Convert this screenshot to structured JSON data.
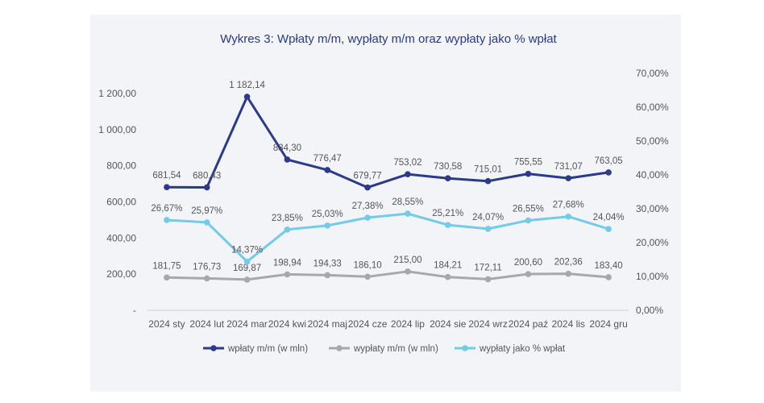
{
  "chart_data": {
    "type": "line",
    "title": "Wykres 3: Wpłaty m/m, wypłaty m/m oraz wypłaty jako % wpłat",
    "categories": [
      "2024 sty",
      "2024 lut",
      "2024 mar",
      "2024 kwi",
      "2024 maj",
      "2024 cze",
      "2024 lip",
      "2024 sie",
      "2024 wrz",
      "2024 paź",
      "2024 lis",
      "2024 gru"
    ],
    "left_axis": {
      "ylim": [
        0,
        1200
      ],
      "ticks": [
        0,
        200,
        400,
        600,
        800,
        1000,
        1200
      ],
      "tick_labels": [
        "-",
        "200,00",
        "400,00",
        "600,00",
        "800,00",
        "1 000,00",
        "1 200,00"
      ]
    },
    "right_axis": {
      "ylim": [
        0,
        70
      ],
      "ticks": [
        0,
        10,
        20,
        30,
        40,
        50,
        60,
        70
      ],
      "tick_labels": [
        "0,00%",
        "10,00%",
        "20,00%",
        "30,00%",
        "40,00%",
        "50,00%",
        "60,00%",
        "70,00%"
      ]
    },
    "series": [
      {
        "name": "wpłaty m/m (w mln)",
        "axis": "left",
        "color": "#2b3a8a",
        "values": [
          681.54,
          680.43,
          1182.14,
          834.3,
          776.47,
          679.77,
          753.02,
          730.58,
          715.01,
          755.55,
          731.07,
          763.05
        ],
        "labels": [
          "681,54",
          "680,43",
          "1 182,14",
          "834,30",
          "776,47",
          "679,77",
          "753,02",
          "730,58",
          "715,01",
          "755,55",
          "731,07",
          "763,05"
        ]
      },
      {
        "name": "wypłaty m/m (w mln)",
        "axis": "left",
        "color": "#a8a8ab",
        "values": [
          181.75,
          176.73,
          169.87,
          198.94,
          194.33,
          186.1,
          215.0,
          184.21,
          172.11,
          200.6,
          202.36,
          183.4
        ],
        "labels": [
          "181,75",
          "176,73",
          "169,87",
          "198,94",
          "194,33",
          "186,10",
          "215,00",
          "184,21",
          "172,11",
          "200,60",
          "202,36",
          "183,40"
        ]
      },
      {
        "name": "wypłaty jako % wpłat",
        "axis": "right",
        "color": "#72cbe8",
        "values": [
          26.67,
          25.97,
          14.37,
          23.85,
          25.03,
          27.38,
          28.55,
          25.21,
          24.07,
          26.55,
          27.68,
          24.04
        ],
        "labels": [
          "26,67%",
          "25,97%",
          "14,37%",
          "23,85%",
          "25,03%",
          "27,38%",
          "28,55%",
          "25,21%",
          "24,07%",
          "26,55%",
          "27,68%",
          "24,04%"
        ]
      }
    ],
    "grid": false,
    "legend": "bottom"
  }
}
